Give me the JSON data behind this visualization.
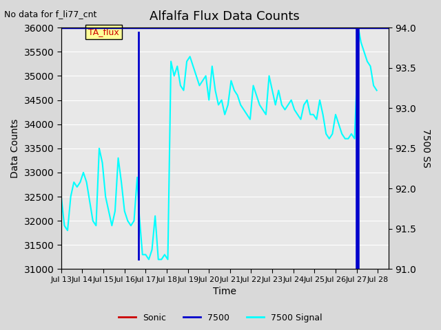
{
  "title": "Alfalfa Flux Data Counts",
  "subtitle": "No data for f_li77_cnt",
  "xlabel": "Time",
  "ylabel_left": "Data Counts",
  "ylabel_right": "7500 SS",
  "xlim": [
    0,
    15.5
  ],
  "ylim_left": [
    31000,
    36000
  ],
  "ylim_right": [
    91.0,
    94.0
  ],
  "xtick_labels": [
    "Jul 13",
    "Jul 14",
    "Jul 15",
    "Jul 16",
    "Jul 17",
    "Jul 18",
    "Jul 19",
    "Jul 20",
    "Jul 21",
    "Jul 22",
    "Jul 23",
    "Jul 24",
    "Jul 25",
    "Jul 26",
    "Jul 27",
    "Jul 28"
  ],
  "xtick_positions": [
    0,
    1,
    2,
    3,
    4,
    5,
    6,
    7,
    8,
    9,
    10,
    11,
    12,
    13,
    14,
    15
  ],
  "background_color": "#d9d9d9",
  "plot_bg_color": "#e8e8e8",
  "annotation_box_color": "#ffff99",
  "annotation_text": "TA_flux",
  "annotation_text_color": "#cc0000",
  "cyan_line_color": "#00ffff",
  "blue_line_color": "#0000cc",
  "red_line_color": "#cc0000",
  "legend_entries": [
    "Sonic",
    "7500",
    "7500 Signal"
  ],
  "legend_colors": [
    "#cc0000",
    "#0000cc",
    "#00ffff"
  ],
  "blue_vline_x": 14.05,
  "blue_hline_y": 36000,
  "signal_x": [
    0.0,
    0.15,
    0.3,
    0.45,
    0.6,
    0.75,
    0.9,
    1.05,
    1.2,
    1.35,
    1.5,
    1.65,
    1.8,
    1.95,
    2.1,
    2.25,
    2.4,
    2.55,
    2.7,
    2.85,
    3.0,
    3.15,
    3.3,
    3.45,
    3.6,
    3.7,
    3.85,
    4.0,
    4.15,
    4.3,
    4.45,
    4.6,
    4.75,
    4.9,
    5.05,
    5.2,
    5.35,
    5.5,
    5.65,
    5.8,
    5.95,
    6.1,
    6.25,
    6.4,
    6.55,
    6.7,
    6.85,
    7.0,
    7.15,
    7.3,
    7.45,
    7.6,
    7.75,
    7.9,
    8.05,
    8.2,
    8.35,
    8.5,
    8.65,
    8.8,
    8.95,
    9.1,
    9.25,
    9.4,
    9.55,
    9.7,
    9.85,
    10.0,
    10.15,
    10.3,
    10.45,
    10.6,
    10.75,
    10.9,
    11.05,
    11.2,
    11.35,
    11.5,
    11.65,
    11.8,
    11.95,
    12.1,
    12.25,
    12.4,
    12.55,
    12.7,
    12.85,
    13.0,
    13.15,
    13.3,
    13.45,
    13.6,
    13.75,
    13.9,
    14.1,
    14.2,
    14.35,
    14.5,
    14.65,
    14.8,
    14.95
  ],
  "signal_y": [
    32500,
    31900,
    31800,
    32500,
    32800,
    32700,
    32800,
    33000,
    32800,
    32400,
    32000,
    31900,
    33500,
    33200,
    32500,
    32200,
    31900,
    32200,
    33300,
    32800,
    32200,
    32000,
    31900,
    32000,
    32900,
    32100,
    31300,
    31300,
    31200,
    31400,
    32100,
    31200,
    31200,
    31300,
    31200,
    35300,
    35000,
    35200,
    34800,
    34700,
    35300,
    35400,
    35200,
    35000,
    34800,
    34900,
    35000,
    34500,
    35200,
    34700,
    34400,
    34500,
    34200,
    34400,
    34900,
    34700,
    34600,
    34400,
    34300,
    34200,
    34100,
    34800,
    34600,
    34400,
    34300,
    34200,
    35000,
    34700,
    34400,
    34700,
    34400,
    34300,
    34400,
    34500,
    34300,
    34200,
    34100,
    34400,
    34500,
    34200,
    34200,
    34100,
    34500,
    34200,
    33800,
    33700,
    33800,
    34200,
    34000,
    33800,
    33700,
    33700,
    33800,
    33700,
    35950,
    35700,
    35500,
    35300,
    35200,
    34800,
    34700
  ]
}
